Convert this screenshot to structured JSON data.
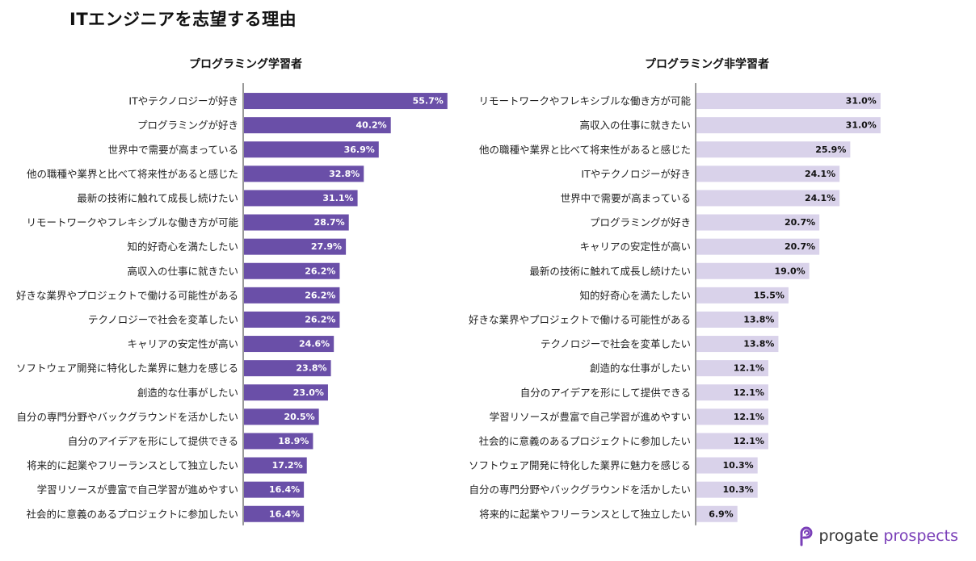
{
  "page": {
    "title": "ITエンジニアを志望する理由",
    "brand": {
      "word1": "progate",
      "word2": "prospects"
    }
  },
  "colors": {
    "left_bar": "#6a4fa8",
    "right_bar": "#d9d2ea",
    "left_label": "#ffffff",
    "right_label": "#111111",
    "brand_accent": "#7a3fb8"
  },
  "chart_data": [
    {
      "type": "bar",
      "orientation": "horizontal",
      "title": "プログラミング学習者",
      "xlim": [
        0,
        100
      ],
      "value_suffix": "%",
      "categories": [
        "ITやテクノロジーが好き",
        "プログラミングが好き",
        "世界中で需要が高まっている",
        "他の職種や業界と比べて将来性があると感じた",
        "最新の技術に触れて成長し続けたい",
        "リモートワークやフレキシブルな働き方が可能",
        "知的好奇心を満たしたい",
        "高収入の仕事に就きたい",
        "好きな業界やプロジェクトで働ける可能性がある",
        "テクノロジーで社会を変革したい",
        "キャリアの安定性が高い",
        "ソフトウェア開発に特化した業界に魅力を感じる",
        "創造的な仕事がしたい",
        "自分の専門分野やバックグラウンドを活かしたい",
        "自分のアイデアを形にして提供できる",
        "将来的に起業やフリーランスとして独立したい",
        "学習リソースが豊富で自己学習が進めやすい",
        "社会的に意義のあるプロジェクトに参加したい"
      ],
      "values": [
        55.7,
        40.2,
        36.9,
        32.8,
        31.1,
        28.7,
        27.9,
        26.2,
        26.2,
        26.2,
        24.6,
        23.8,
        23.0,
        20.5,
        18.9,
        17.2,
        16.4,
        16.4
      ],
      "labels": [
        "55.7%",
        "40.2%",
        "36.9%",
        "32.8%",
        "31.1%",
        "28.7%",
        "27.9%",
        "26.2%",
        "26.2%",
        "26.2%",
        "24.6%",
        "23.8%",
        "23.0%",
        "20.5%",
        "18.9%",
        "17.2%",
        "16.4%",
        "16.4%"
      ]
    },
    {
      "type": "bar",
      "orientation": "horizontal",
      "title": "プログラミング非学習者",
      "xlim": [
        0,
        100
      ],
      "value_suffix": "%",
      "categories": [
        "リモートワークやフレキシブルな働き方が可能",
        "高収入の仕事に就きたい",
        "他の職種や業界と比べて将来性があると感じた",
        "ITやテクノロジーが好き",
        "世界中で需要が高まっている",
        "プログラミングが好き",
        "キャリアの安定性が高い",
        "最新の技術に触れて成長し続けたい",
        "知的好奇心を満たしたい",
        "好きな業界やプロジェクトで働ける可能性がある",
        "テクノロジーで社会を変革したい",
        "創造的な仕事がしたい",
        "自分のアイデアを形にして提供できる",
        "学習リソースが豊富で自己学習が進めやすい",
        "社会的に意義のあるプロジェクトに参加したい",
        "ソフトウェア開発に特化した業界に魅力を感じる",
        "自分の専門分野やバックグラウンドを活かしたい",
        "将来的に起業やフリーランスとして独立したい"
      ],
      "values": [
        31.0,
        31.0,
        25.9,
        24.1,
        24.1,
        20.7,
        20.7,
        19.0,
        15.5,
        13.8,
        13.8,
        12.1,
        12.1,
        12.1,
        12.1,
        10.3,
        10.3,
        6.9
      ],
      "labels": [
        "31.0%",
        "31.0%",
        "25.9%",
        "24.1%",
        "24.1%",
        "20.7%",
        "20.7%",
        "19.0%",
        "15.5%",
        "13.8%",
        "13.8%",
        "12.1%",
        "12.1%",
        "12.1%",
        "12.1%",
        "10.3%",
        "10.3%",
        "6.9%"
      ]
    }
  ]
}
